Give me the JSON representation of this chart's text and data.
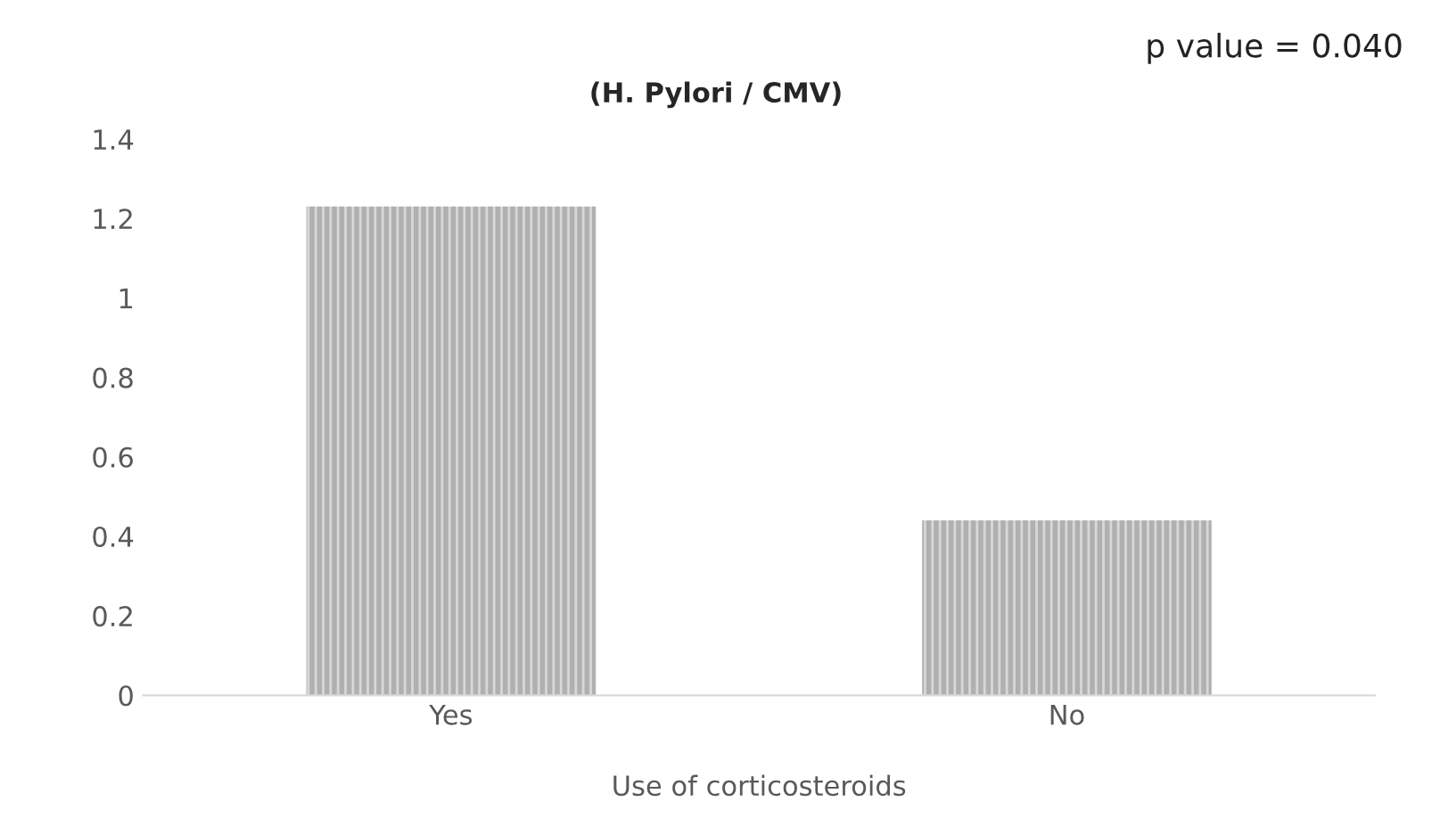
{
  "chart_data": {
    "type": "bar",
    "title": "(H. Pylori / CMV)",
    "xlabel": "Use of corticosteroids",
    "categories": [
      "Yes",
      "No"
    ],
    "values": [
      1.23,
      0.44
    ],
    "color": "#b0b0b0",
    "ylim": [
      0,
      1.4
    ],
    "yticks": [
      0,
      0.2,
      0.4,
      0.6,
      0.8,
      1,
      1.2,
      1.4
    ],
    "grid": false,
    "legend": false,
    "annotations": [
      "p value = 0.040"
    ]
  }
}
